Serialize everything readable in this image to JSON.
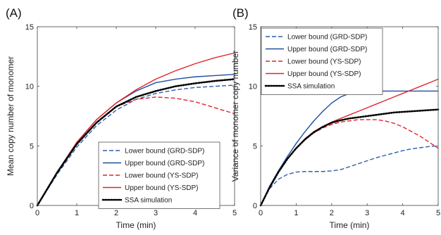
{
  "chart_data": [
    {
      "type": "line",
      "panel_label": "(A)",
      "xlabel": "Time (min)",
      "ylabel": "Mean copy number of monomer",
      "xlim": [
        0,
        5
      ],
      "ylim": [
        0,
        15
      ],
      "xticks": [
        "0",
        "1",
        "2",
        "3",
        "4",
        "5"
      ],
      "yticks": [
        "0",
        "5",
        "10",
        "15"
      ],
      "grid": false,
      "legend_position": "bottom-right",
      "x": [
        0,
        0.5,
        1,
        1.5,
        2,
        2.5,
        3,
        3.5,
        4,
        4.5,
        5
      ],
      "series": [
        {
          "name": "Lower bound (GRD-SDP)",
          "color": "#2b5fae",
          "dash": "dashed",
          "values": [
            0,
            2.6,
            4.9,
            6.7,
            8.0,
            8.9,
            9.4,
            9.7,
            9.9,
            10.0,
            10.1
          ]
        },
        {
          "name": "Upper bound (GRD-SDP)",
          "color": "#1f4ea0",
          "dash": "solid",
          "values": [
            0,
            2.8,
            5.3,
            7.2,
            8.6,
            9.6,
            10.3,
            10.6,
            10.8,
            10.9,
            11.0
          ]
        },
        {
          "name": "Lower bound (YS-SDP)",
          "color": "#e0252c",
          "dash": "dashed",
          "values": [
            0,
            2.8,
            5.2,
            7.0,
            8.3,
            8.9,
            9.1,
            9.0,
            8.7,
            8.2,
            7.7
          ]
        },
        {
          "name": "Upper bound (YS-SDP)",
          "color": "#e0252c",
          "dash": "solid",
          "values": [
            0,
            2.8,
            5.3,
            7.2,
            8.6,
            9.7,
            10.6,
            11.3,
            11.9,
            12.4,
            12.8
          ]
        },
        {
          "name": "SSA simulation",
          "color": "#000000",
          "dash": "dotted",
          "values": [
            0,
            2.75,
            5.15,
            6.95,
            8.3,
            9.1,
            9.6,
            10.0,
            10.25,
            10.45,
            10.6
          ]
        }
      ]
    },
    {
      "type": "line",
      "panel_label": "(B)",
      "xlabel": "Time (min)",
      "ylabel": "Variance of monomer copy number",
      "xlim": [
        0,
        5
      ],
      "ylim": [
        0,
        15
      ],
      "xticks": [
        "0",
        "1",
        "2",
        "3",
        "4",
        "5"
      ],
      "yticks": [
        "0",
        "5",
        "10",
        "15"
      ],
      "grid": false,
      "legend_position": "top-left",
      "x": [
        0,
        0.25,
        0.5,
        0.75,
        1,
        1.25,
        1.5,
        1.75,
        2,
        2.25,
        2.5,
        2.75,
        3,
        3.25,
        3.5,
        3.75,
        4,
        4.25,
        4.5,
        4.75,
        5
      ],
      "series": [
        {
          "name": "Lower bound (GRD-SDP)",
          "color": "#2b5fae",
          "dash": "dashed",
          "values": [
            0,
            1.4,
            2.2,
            2.6,
            2.8,
            2.85,
            2.85,
            2.85,
            2.9,
            3.0,
            3.25,
            3.5,
            3.75,
            4.0,
            4.2,
            4.4,
            4.6,
            4.75,
            4.85,
            4.95,
            5.0
          ]
        },
        {
          "name": "Upper bound (GRD-SDP)",
          "color": "#1f4ea0",
          "dash": "solid",
          "values": [
            0,
            1.6,
            2.9,
            4.1,
            5.2,
            6.2,
            7.1,
            7.9,
            8.6,
            9.1,
            9.4,
            9.55,
            9.6,
            9.6,
            9.6,
            9.6,
            9.6,
            9.6,
            9.6,
            9.6,
            9.6
          ]
        },
        {
          "name": "Lower bound (YS-SDP)",
          "color": "#e0252c",
          "dash": "dashed",
          "values": [
            0,
            1.5,
            2.8,
            3.9,
            4.8,
            5.5,
            6.1,
            6.5,
            6.8,
            7.0,
            7.1,
            7.2,
            7.2,
            7.2,
            7.1,
            6.9,
            6.6,
            6.2,
            5.8,
            5.3,
            4.8
          ]
        },
        {
          "name": "Upper bound (YS-SDP)",
          "color": "#e0252c",
          "dash": "solid",
          "values": [
            0,
            1.5,
            2.8,
            3.9,
            4.8,
            5.6,
            6.2,
            6.6,
            7.0,
            7.3,
            7.6,
            7.9,
            8.2,
            8.5,
            8.8,
            9.1,
            9.4,
            9.7,
            10.0,
            10.3,
            10.6
          ]
        },
        {
          "name": "SSA simulation",
          "color": "#000000",
          "dash": "dotted",
          "values": [
            0,
            1.5,
            2.8,
            3.9,
            4.8,
            5.55,
            6.15,
            6.6,
            6.95,
            7.15,
            7.3,
            7.4,
            7.5,
            7.6,
            7.7,
            7.8,
            7.85,
            7.9,
            7.95,
            8.0,
            8.05
          ]
        }
      ]
    }
  ]
}
